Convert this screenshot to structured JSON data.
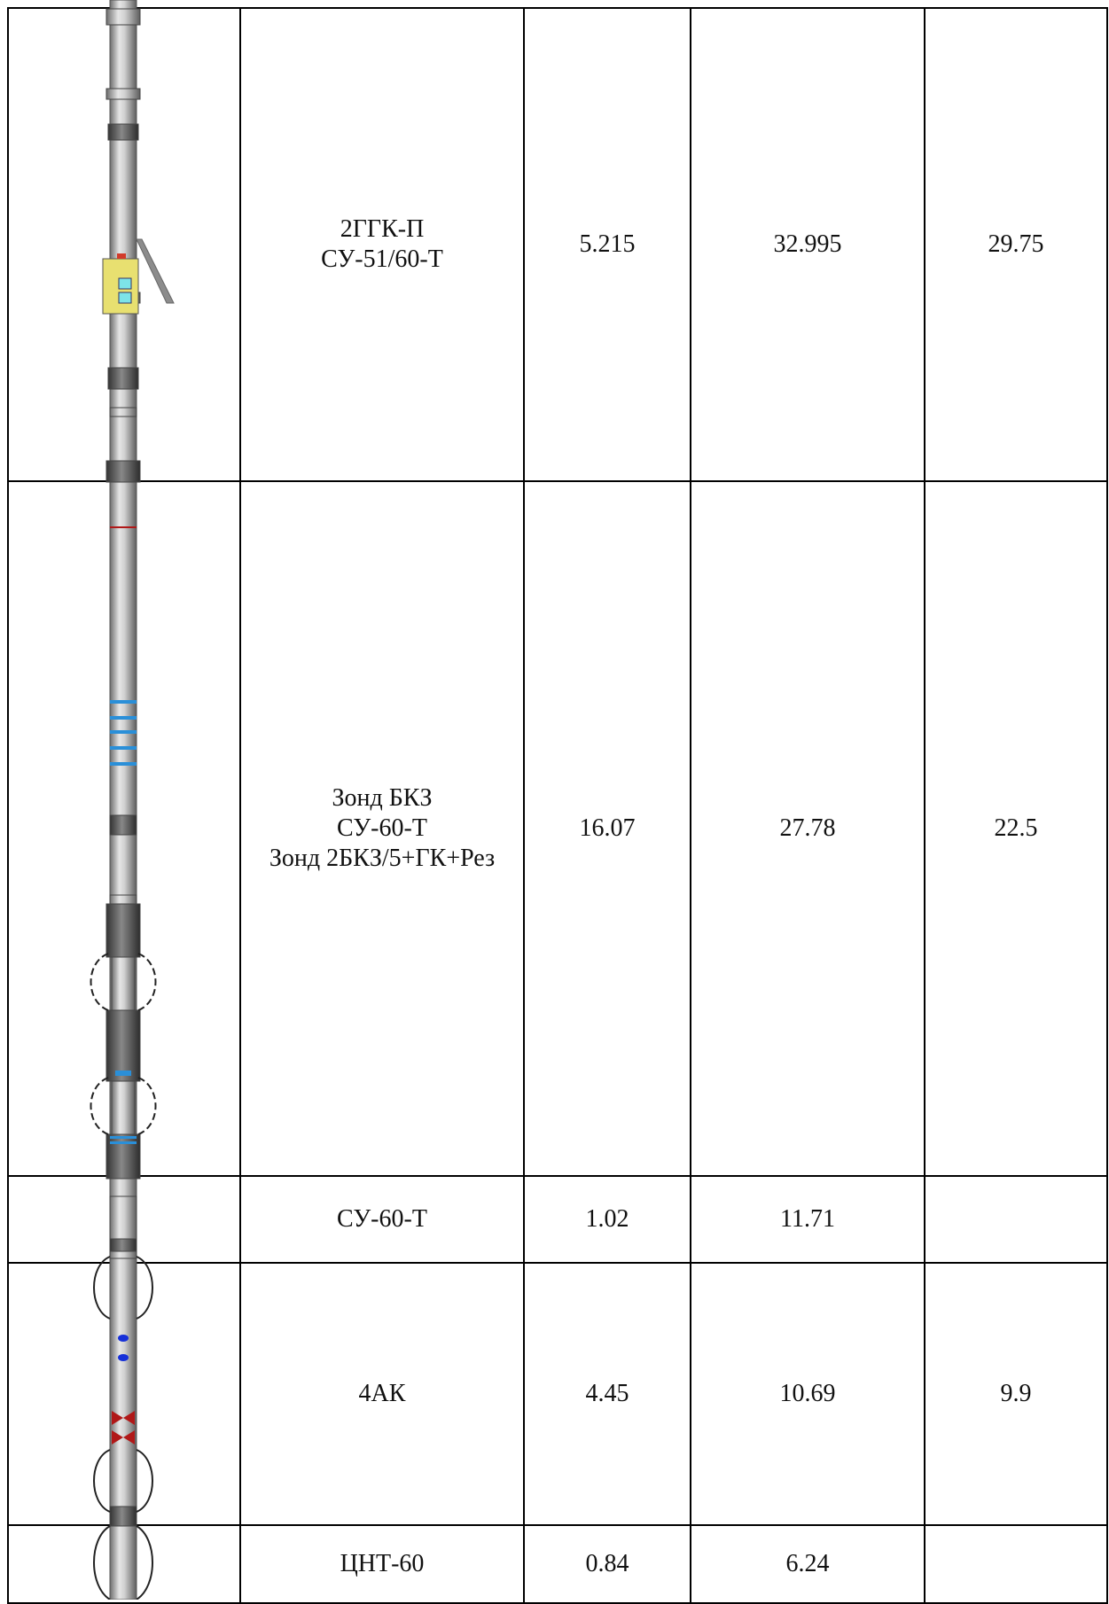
{
  "rows": [
    {
      "name_lines": [
        "2ГГК-П",
        "СУ-51/60-Т"
      ],
      "length": "5.215",
      "position": "32.995",
      "measure_point": "29.75"
    },
    {
      "name_lines": [
        "Зонд БКЗ",
        "СУ-60-Т",
        "Зонд 2БКЗ/5+ГК+Рез"
      ],
      "length": "16.07",
      "position": "27.78",
      "measure_point": "22.5"
    },
    {
      "name_lines": [
        "СУ-60-Т"
      ],
      "length": "1.02",
      "position": "11.71",
      "measure_point": ""
    },
    {
      "name_lines": [
        "4АК"
      ],
      "length": "4.45",
      "position": "10.69",
      "measure_point": "9.9"
    },
    {
      "name_lines": [
        "ЦНТ-60"
      ],
      "length": "0.84",
      "position": "6.24",
      "measure_point": ""
    }
  ],
  "colors": {
    "tool_body": "#b9b9b9",
    "tool_dark": "#5a5a5a",
    "stripe_blue": "#2a8fd8",
    "marker_red": "#b01818",
    "marker_yellow": "#e8e070"
  }
}
